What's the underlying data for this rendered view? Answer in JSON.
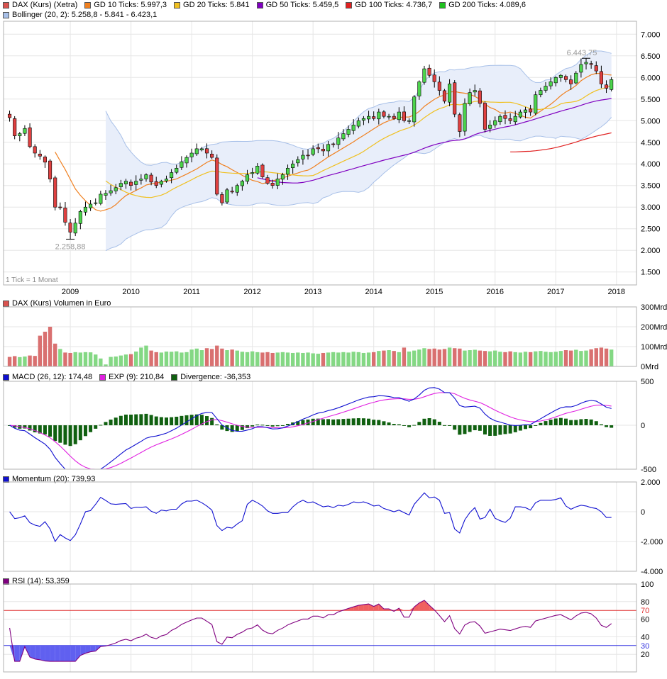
{
  "legend": {
    "price": [
      {
        "label": "DAX (Kurs) (Xetra)",
        "color": "#d9534f"
      },
      {
        "label": "GD 10 Ticks: 5.997,3",
        "color": "#f08020"
      },
      {
        "label": "GD 20 Ticks: 5.841",
        "color": "#f0c020"
      },
      {
        "label": "GD 50 Ticks: 5.459,5",
        "color": "#8000c0"
      },
      {
        "label": "GD 100 Ticks: 4.736,7",
        "color": "#e02020"
      },
      {
        "label": "GD 200 Ticks: 4.089,6",
        "color": "#20c020"
      }
    ],
    "bollinger": {
      "label": "Bollinger (20, 2): 5.258,8 - 5.841 - 6.423,1",
      "color": "#a8c0e8"
    },
    "volume": {
      "label": "DAX (Kurs) Volumen in Euro",
      "color": "#d9534f"
    },
    "macd": [
      {
        "label": "MACD (26, 12): 174,48",
        "color": "#1010d0"
      },
      {
        "label": "EXP (9): 210,84",
        "color": "#e020e0"
      },
      {
        "label": "Divergence: -36,353",
        "color": "#106010"
      }
    ],
    "momentum": {
      "label": "Momentum (20): 739,93",
      "color": "#1010d0"
    },
    "rsi": {
      "label": "RSI (14): 53,359",
      "color": "#800080"
    }
  },
  "annotations": {
    "tick_note": "1 Tick = 1 Monat",
    "high_label": "6.443,75",
    "low_label": "2.258,88"
  },
  "colors": {
    "up": "#4cd44c",
    "down": "#e04040",
    "grid": "#e6e6e6",
    "axis": "#000000"
  },
  "chart_data": [
    {
      "type": "candlestick",
      "title": "DAX (Kurs) (Xetra)",
      "x_tick_labels": [
        "2009",
        "2010",
        "2011",
        "2012",
        "2013",
        "2014",
        "2015",
        "2016",
        "2017",
        "2018"
      ],
      "y_tick_labels": [
        "7.000",
        "6.500",
        "6.000",
        "5.500",
        "5.000",
        "4.500",
        "4.000",
        "3.500",
        "3.000",
        "2.500",
        "2.000",
        "1.500"
      ],
      "ylim": [
        1200,
        7300
      ],
      "x_domain": [
        2007.9,
        2018.33
      ],
      "annotations": {
        "max": 6443.75,
        "min": 2258.88
      },
      "closes": [
        5070,
        4650,
        4700,
        4820,
        4400,
        4250,
        4180,
        4040,
        3650,
        3000,
        3000,
        2650,
        2420,
        2630,
        2900,
        3000,
        3070,
        3100,
        3300,
        3320,
        3380,
        3450,
        3550,
        3600,
        3500,
        3600,
        3650,
        3750,
        3580,
        3500,
        3600,
        3650,
        3800,
        3900,
        4050,
        4150,
        4250,
        4350,
        4350,
        4250,
        4150,
        3300,
        3100,
        3400,
        3350,
        3500,
        3600,
        3750,
        3800,
        3950,
        3700,
        3550,
        3500,
        3650,
        3750,
        3900,
        4000,
        4100,
        4200,
        4200,
        4350,
        4350,
        4300,
        4450,
        4450,
        4600,
        4700,
        4800,
        4900,
        5000,
        5050,
        5100,
        5050,
        5200,
        5100,
        5100,
        5050,
        5200,
        5000,
        5000,
        5550,
        5900,
        6200,
        6050,
        5900,
        5700,
        5450,
        5850,
        5150,
        4750,
        5400,
        5650,
        5700,
        5400,
        4800,
        4900,
        5000,
        5100,
        5050,
        5000,
        5100,
        5200,
        5250,
        5200,
        5600,
        5700,
        5800,
        5900,
        6000,
        6050,
        5950,
        5850,
        6100,
        6300,
        6350,
        6300,
        6150,
        5850,
        5750,
        5950
      ],
      "ma_lines": [
        {
          "name": "GD 10",
          "period": 10,
          "color": "#f08020"
        },
        {
          "name": "GD 20",
          "period": 20,
          "color": "#f0c020"
        },
        {
          "name": "GD 50",
          "period": 50,
          "color": "#8000c0"
        },
        {
          "name": "GD 100",
          "period": 100,
          "color": "#e02020"
        },
        {
          "name": "GD 200",
          "period": 200,
          "color": "#20c020"
        }
      ],
      "bollinger": {
        "period": 20,
        "k": 2
      }
    },
    {
      "type": "bar",
      "title": "DAX (Kurs) Volumen in Euro",
      "y_tick_labels": [
        "300Mrd",
        "200Mrd",
        "100Mrd",
        "0Mrd"
      ],
      "ylim": [
        0,
        300
      ],
      "values": [
        48,
        52,
        47,
        50,
        55,
        53,
        155,
        175,
        200,
        115,
        88,
        70,
        68,
        72,
        70,
        72,
        71,
        60,
        40,
        10,
        48,
        50,
        55,
        60,
        62,
        75,
        95,
        105,
        80,
        72,
        70,
        75,
        74,
        76,
        70,
        72,
        85,
        90,
        82,
        92,
        88,
        105,
        90,
        82,
        85,
        80,
        74,
        72,
        76,
        72,
        70,
        72,
        68,
        70,
        72,
        70,
        68,
        70,
        68,
        70,
        66,
        64,
        68,
        70,
        72,
        70,
        72,
        70,
        74,
        72,
        68,
        70,
        72,
        78,
        80,
        82,
        78,
        72,
        95,
        75,
        80,
        85,
        92,
        88,
        90,
        85,
        88,
        95,
        92,
        90,
        80,
        82,
        84,
        80,
        78,
        76,
        80,
        74,
        72,
        76,
        72,
        70,
        74,
        72,
        76,
        78,
        74,
        72,
        74,
        78,
        82,
        80,
        84,
        78,
        80,
        86,
        92,
        95,
        90,
        85
      ]
    },
    {
      "type": "line",
      "title": "MACD (26, 12)",
      "y_tick_labels": [
        "500",
        "0",
        "-500"
      ],
      "ylim": [
        -500,
        500
      ],
      "series": [
        {
          "name": "MACD (26, 12)",
          "color": "#1010d0"
        },
        {
          "name": "EXP (9)",
          "color": "#e020e0"
        },
        {
          "name": "Divergence",
          "color": "#106010"
        }
      ],
      "derived_from": "closes"
    },
    {
      "type": "line",
      "title": "Momentum (20)",
      "y_tick_labels": [
        "2.000",
        "0",
        "-2.000",
        "-4.000"
      ],
      "ylim": [
        -4000,
        2000
      ],
      "derived_from": "closes"
    },
    {
      "type": "line",
      "title": "RSI (14)",
      "y_tick_labels": [
        "100",
        "80",
        "70",
        "60",
        "40",
        "30",
        "20"
      ],
      "ylim": [
        0,
        100
      ],
      "bands": {
        "upper": 70,
        "lower": 30
      },
      "derived_from": "closes"
    }
  ]
}
